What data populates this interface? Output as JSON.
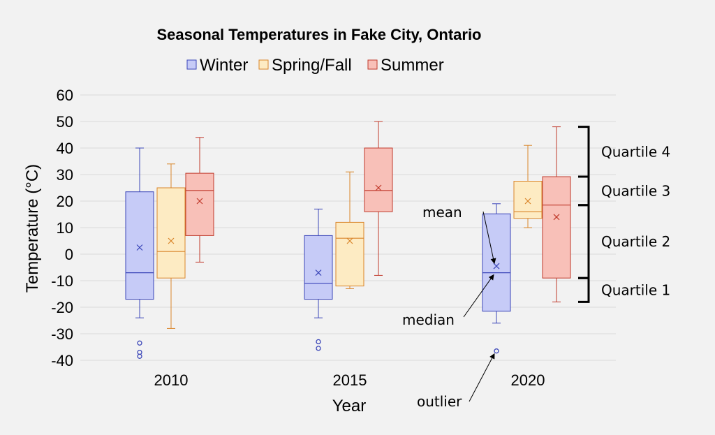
{
  "chart_data": {
    "type": "box",
    "title": "Seasonal Temperatures in Fake City, Ontario",
    "xlabel": "Year",
    "ylabel": "Temperature (°C)",
    "ylim": [
      -40,
      60
    ],
    "yticks": [
      60,
      50,
      40,
      30,
      20,
      10,
      0,
      -10,
      -20,
      -30,
      -40
    ],
    "categories": [
      "2010",
      "2015",
      "2020"
    ],
    "grid": true,
    "legend_position": "top",
    "series": [
      {
        "name": "Winter",
        "fill": "#c6cbf7",
        "stroke": "#3a45b8",
        "boxes": [
          {
            "min": -24,
            "q1": -17,
            "median": -7,
            "q3": 23.5,
            "max": 40,
            "mean": 2.5,
            "outliers": [
              -33.5,
              -37,
              -38.5
            ]
          },
          {
            "min": -24,
            "q1": -17,
            "median": -11,
            "q3": 7,
            "max": 17,
            "mean": -7,
            "outliers": [
              -33,
              -35.5
            ]
          },
          {
            "min": -26,
            "q1": -21.5,
            "median": -7,
            "q3": 15.2,
            "max": 19,
            "mean": -4.5,
            "outliers": [
              -36.5
            ]
          }
        ]
      },
      {
        "name": "Spring/Fall",
        "fill": "#fdebc3",
        "stroke": "#d9852a",
        "boxes": [
          {
            "min": -28,
            "q1": -9,
            "median": 1,
            "q3": 25,
            "max": 34,
            "mean": 5,
            "outliers": []
          },
          {
            "min": -13,
            "q1": -12,
            "median": 6,
            "q3": 12,
            "max": 31,
            "mean": 5,
            "outliers": []
          },
          {
            "min": 10,
            "q1": 13.5,
            "median": 16,
            "q3": 27.5,
            "max": 41,
            "mean": 20,
            "outliers": []
          }
        ]
      },
      {
        "name": "Summer",
        "fill": "#f8c0b8",
        "stroke": "#c0392b",
        "boxes": [
          {
            "min": -3,
            "q1": 7,
            "median": 24,
            "q3": 30.5,
            "max": 44,
            "mean": 20,
            "outliers": []
          },
          {
            "min": -8,
            "q1": 16,
            "median": 24,
            "q3": 40,
            "max": 50,
            "mean": 25,
            "outliers": []
          },
          {
            "min": -18,
            "q1": -9,
            "median": 18.5,
            "q3": 29.2,
            "max": 48,
            "mean": 14,
            "outliers": []
          }
        ]
      }
    ],
    "annotations": {
      "labels": [
        "mean",
        "median",
        "outlier"
      ],
      "quartiles": [
        {
          "label": "Quartile 4",
          "from": 29.2,
          "to": 48
        },
        {
          "label": "Quartile 3",
          "from": 18.5,
          "to": 29.2
        },
        {
          "label": "Quartile 2",
          "from": -9,
          "to": 18.5
        },
        {
          "label": "Quartile 1",
          "from": -18,
          "to": -9
        }
      ]
    }
  }
}
